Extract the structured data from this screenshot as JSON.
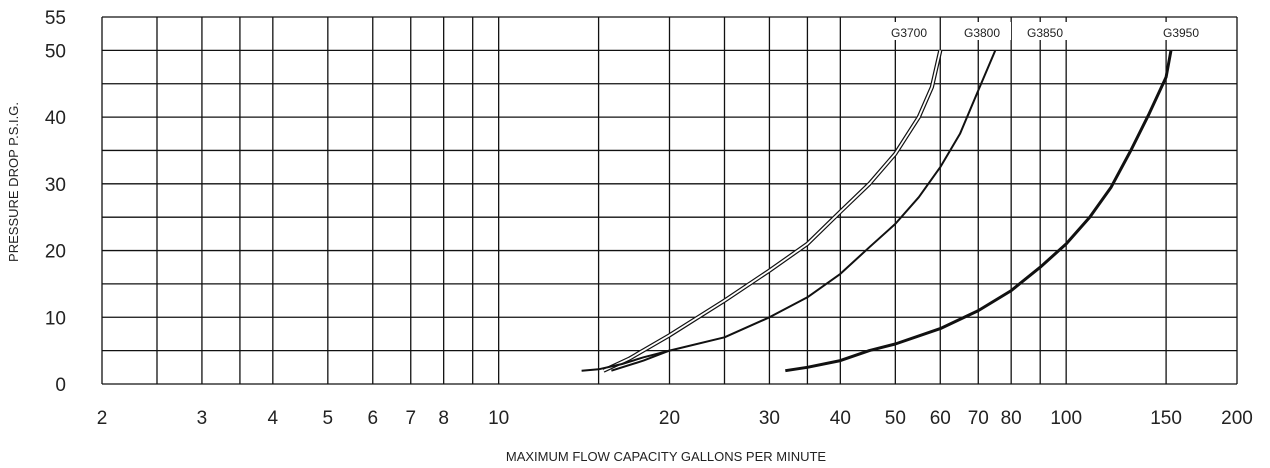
{
  "chart_data": {
    "type": "line",
    "xscale": "log",
    "xlim": [
      2,
      200
    ],
    "ylim": [
      0,
      55
    ],
    "grid": true,
    "xlabel": "MAXIMUM FLOW CAPACITY GALLONS PER MINUTE",
    "ylabel": "PRESSURE DROP  P.S.I.G.",
    "x_ticks": [
      2,
      3,
      4,
      5,
      6,
      7,
      8,
      10,
      20,
      30,
      40,
      50,
      60,
      70,
      80,
      100,
      150,
      200
    ],
    "x_tick_labels": [
      "2",
      "3",
      "4",
      "5",
      "6",
      "7",
      "8",
      "10",
      "20",
      "30",
      "40",
      "50",
      "60",
      "70",
      "80",
      "100",
      "150",
      "200"
    ],
    "x_grid": [
      2,
      2.5,
      3,
      3.5,
      4,
      5,
      6,
      7,
      8,
      9,
      10,
      15,
      20,
      25,
      30,
      35,
      40,
      50,
      60,
      70,
      80,
      90,
      100,
      150,
      200
    ],
    "y_ticks": [
      0,
      10,
      20,
      30,
      40,
      50,
      55
    ],
    "y_tick_labels": [
      "0",
      "10",
      "20",
      "30",
      "40",
      "50",
      "55"
    ],
    "y_grid": [
      0,
      5,
      10,
      15,
      20,
      25,
      30,
      35,
      40,
      45,
      50,
      55
    ],
    "series": [
      {
        "name": "G3700",
        "style": "double",
        "x": [
          15.3,
          17,
          20,
          25,
          30,
          35,
          40,
          45,
          50,
          55,
          58,
          60
        ],
        "y": [
          2,
          3.8,
          7.3,
          12.5,
          17,
          21,
          25.8,
          30,
          34.5,
          40,
          44.5,
          50
        ]
      },
      {
        "name": "G3800",
        "style": "single",
        "x": [
          15.8,
          18,
          20,
          25,
          30,
          35,
          40,
          45,
          50,
          55,
          60,
          65,
          70,
          75
        ],
        "y": [
          2,
          3.5,
          5,
          7,
          10,
          13,
          16.5,
          20.5,
          24,
          28,
          32.5,
          37.5,
          44,
          50
        ]
      },
      {
        "name": "G3850",
        "style": "single",
        "x": [
          14,
          15,
          16.5,
          18,
          20
        ],
        "y": [
          2,
          2.2,
          3,
          4,
          5
        ]
      },
      {
        "name": "G3950",
        "style": "thick",
        "x": [
          32,
          35,
          40,
          45,
          50,
          60,
          70,
          80,
          90,
          100,
          110,
          120,
          130,
          140,
          150,
          153
        ],
        "y": [
          2,
          2.5,
          3.5,
          5,
          6,
          8.3,
          11,
          14,
          17.5,
          21,
          25,
          29.5,
          35,
          40.5,
          46,
          50
        ]
      }
    ]
  }
}
